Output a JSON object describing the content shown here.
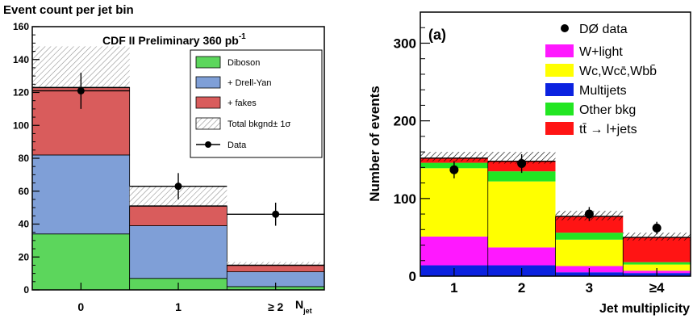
{
  "chart_data": [
    {
      "type": "bar",
      "subtype": "stacked-histogram",
      "title": "Event count per jet bin",
      "inner_title": "CDF II Preliminary 360 pb",
      "inner_title_sup": "-1",
      "xlabel": "N",
      "xlabel_sub": "jet",
      "ylabel": "",
      "categories": [
        "0",
        "1",
        "≥ 2"
      ],
      "ylim": [
        0,
        160
      ],
      "yticks": [
        "0",
        "20",
        "40",
        "60",
        "80",
        "100",
        "120",
        "140",
        "160"
      ],
      "series": [
        {
          "name": "Diboson",
          "values": [
            34,
            7,
            2
          ],
          "color": "#5cd65c"
        },
        {
          "name": "+ Drell-Yan",
          "values": [
            48,
            32,
            9
          ],
          "color": "#7f9fd7"
        },
        {
          "name": "+ fakes",
          "values": [
            41,
            12,
            4
          ],
          "color": "#d95c5c"
        }
      ],
      "total_band": {
        "name": "Total bkgnd± 1σ",
        "center": [
          123,
          51,
          15
        ],
        "upper": [
          148,
          63,
          17
        ],
        "lower": [
          121,
          50,
          14
        ]
      },
      "data": {
        "name": "Data",
        "values": [
          121,
          63,
          46
        ],
        "errors": [
          11,
          8,
          7
        ]
      },
      "legend_placement": "top-right"
    },
    {
      "type": "bar",
      "subtype": "stacked-histogram",
      "panel_label": "(a)",
      "xlabel": "Jet multiplicity",
      "ylabel": "Number of events",
      "categories": [
        "1",
        "2",
        "3",
        "≥4"
      ],
      "ylim": [
        0,
        340
      ],
      "yticks": [
        "0",
        "100",
        "200",
        "300"
      ],
      "series": [
        {
          "name": "Multijets",
          "values": [
            14,
            14,
            5,
            4
          ],
          "color": "#0b22e0"
        },
        {
          "name": "W+light",
          "values": [
            37,
            23,
            8,
            3
          ],
          "color": "#ff18ff"
        },
        {
          "name": "Wc,Wcc̄,Wbb̄",
          "values": [
            88,
            85,
            34,
            8
          ],
          "color": "#ffff00"
        },
        {
          "name": "Other bkg",
          "values": [
            7,
            13,
            9,
            3
          ],
          "color": "#22e622"
        },
        {
          "name": "tt̄ → l+jets",
          "values": [
            6,
            13,
            21,
            32
          ],
          "color": "#ff1414"
        }
      ],
      "uncertainty_band": {
        "upper": [
          160,
          160,
          84,
          56
        ],
        "lower": [
          148,
          145,
          72,
          46
        ]
      },
      "data": {
        "name": "DØ data",
        "values": [
          137,
          145,
          80,
          62
        ],
        "errors": [
          11,
          12,
          9,
          8
        ]
      },
      "legend_placement": "top-right"
    }
  ]
}
